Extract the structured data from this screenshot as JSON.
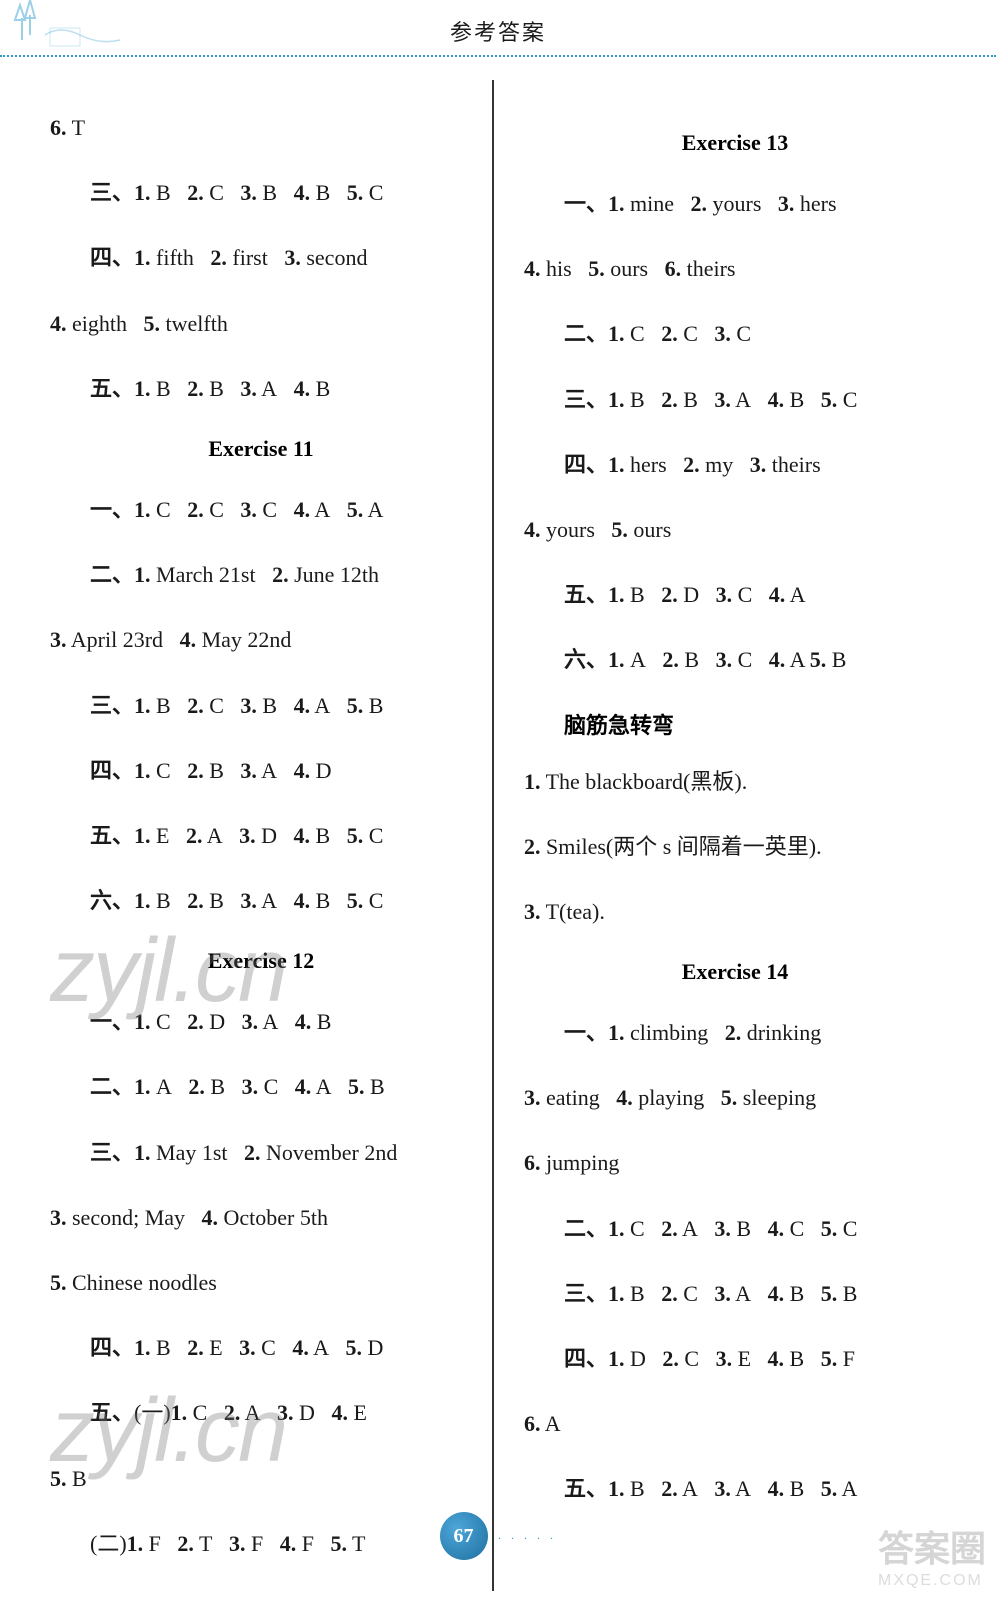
{
  "header": {
    "title": "参考答案",
    "decoration_color": "#5bb0d8"
  },
  "pagenum": "67",
  "watermarks": {
    "text": "zyjl.cn",
    "corner_cn": "答案圈",
    "corner_en": "MXQE.COM"
  },
  "left": {
    "lines": [
      {
        "cls": "",
        "text": "6. T"
      },
      {
        "cls": "indent",
        "text": "三、1. B  2. C  3. B  4. B  5. C"
      },
      {
        "cls": "indent",
        "text": "四、1. fifth  2. first  3. second"
      },
      {
        "cls": "",
        "text": "4. eighth  5. twelfth"
      },
      {
        "cls": "indent",
        "text": "五、1. B  2. B  3. A  4. B"
      }
    ],
    "ex11_title": "Exercise 11",
    "ex11": [
      {
        "cls": "indent",
        "text": "一、1. C  2. C  3. C  4. A  5. A"
      },
      {
        "cls": "indent",
        "text": "二、1. March 21st  2. June 12th"
      },
      {
        "cls": "",
        "text": "3. April 23rd  4. May 22nd"
      },
      {
        "cls": "indent",
        "text": "三、1. B  2. C  3. B  4. A  5. B"
      },
      {
        "cls": "indent",
        "text": "四、1. C  2. B  3. A  4. D"
      },
      {
        "cls": "indent",
        "text": "五、1. E  2. A  3. D  4. B  5. C"
      },
      {
        "cls": "indent",
        "text": "六、1. B  2. B  3. A  4. B  5. C"
      }
    ],
    "ex12_title": "Exercise 12",
    "ex12": [
      {
        "cls": "indent",
        "text": "一、1. C  2. D  3. A  4. B"
      },
      {
        "cls": "indent",
        "text": "二、1. A  2. B  3. C  4. A  5. B"
      },
      {
        "cls": "indent",
        "text": "三、1. May 1st  2. November 2nd"
      },
      {
        "cls": "",
        "text": "3. second; May  4. October 5th"
      },
      {
        "cls": "",
        "text": "5. Chinese noodles"
      },
      {
        "cls": "indent",
        "text": "四、1. B  2. E  3. C  4. A  5. D"
      },
      {
        "cls": "indent",
        "text": "五、(一)1. C  2. A  3. D  4. E"
      },
      {
        "cls": "",
        "text": "5. B"
      },
      {
        "cls": "indent",
        "text": "(二)1. F  2. T  3. F  4. F  5. T"
      }
    ]
  },
  "right": {
    "ex13_title": "Exercise 13",
    "ex13": [
      {
        "cls": "indent",
        "text": "一、1. mine  2. yours  3. hers"
      },
      {
        "cls": "",
        "text": "4. his  5. ours  6. theirs"
      },
      {
        "cls": "indent",
        "text": "二、1. C  2. C  3. C"
      },
      {
        "cls": "indent",
        "text": "三、1. B  2. B  3. A  4. B  5. C"
      },
      {
        "cls": "indent",
        "text": "四、1. hers  2. my  3. theirs"
      },
      {
        "cls": "",
        "text": "4. yours  5. ours"
      },
      {
        "cls": "indent",
        "text": "五、1. B  2. D  3. C  4. A"
      },
      {
        "cls": "indent",
        "text": "六、1. A  2. B  3. C  4. A 5. B"
      }
    ],
    "brain_title": "脑筋急转弯",
    "brain": [
      {
        "cls": "",
        "text": "1. The blackboard(黑板)."
      },
      {
        "cls": "",
        "text": "2. Smiles(两个 s 间隔着一英里)."
      },
      {
        "cls": "",
        "text": "3. T(tea)."
      }
    ],
    "ex14_title": "Exercise 14",
    "ex14": [
      {
        "cls": "indent",
        "text": "一、1. climbing  2. drinking"
      },
      {
        "cls": "",
        "text": "3. eating  4. playing  5. sleeping"
      },
      {
        "cls": "",
        "text": "6. jumping"
      },
      {
        "cls": "indent",
        "text": "二、1. C  2. A  3. B  4. C  5. C"
      },
      {
        "cls": "indent",
        "text": "三、1. B  2. C  3. A  4. B  5. B"
      },
      {
        "cls": "indent",
        "text": "四、1. D  2. C  3. E  4. B  5. F"
      },
      {
        "cls": "",
        "text": "6. A"
      },
      {
        "cls": "indent",
        "text": "五、1. B  2. A  3. A  4. B  5. A"
      }
    ]
  },
  "colors": {
    "text": "#1a1a1a",
    "accent": "#3399cc",
    "pagenum_bg": "#2a7fb0",
    "wm": "rgba(120,120,120,0.35)"
  }
}
